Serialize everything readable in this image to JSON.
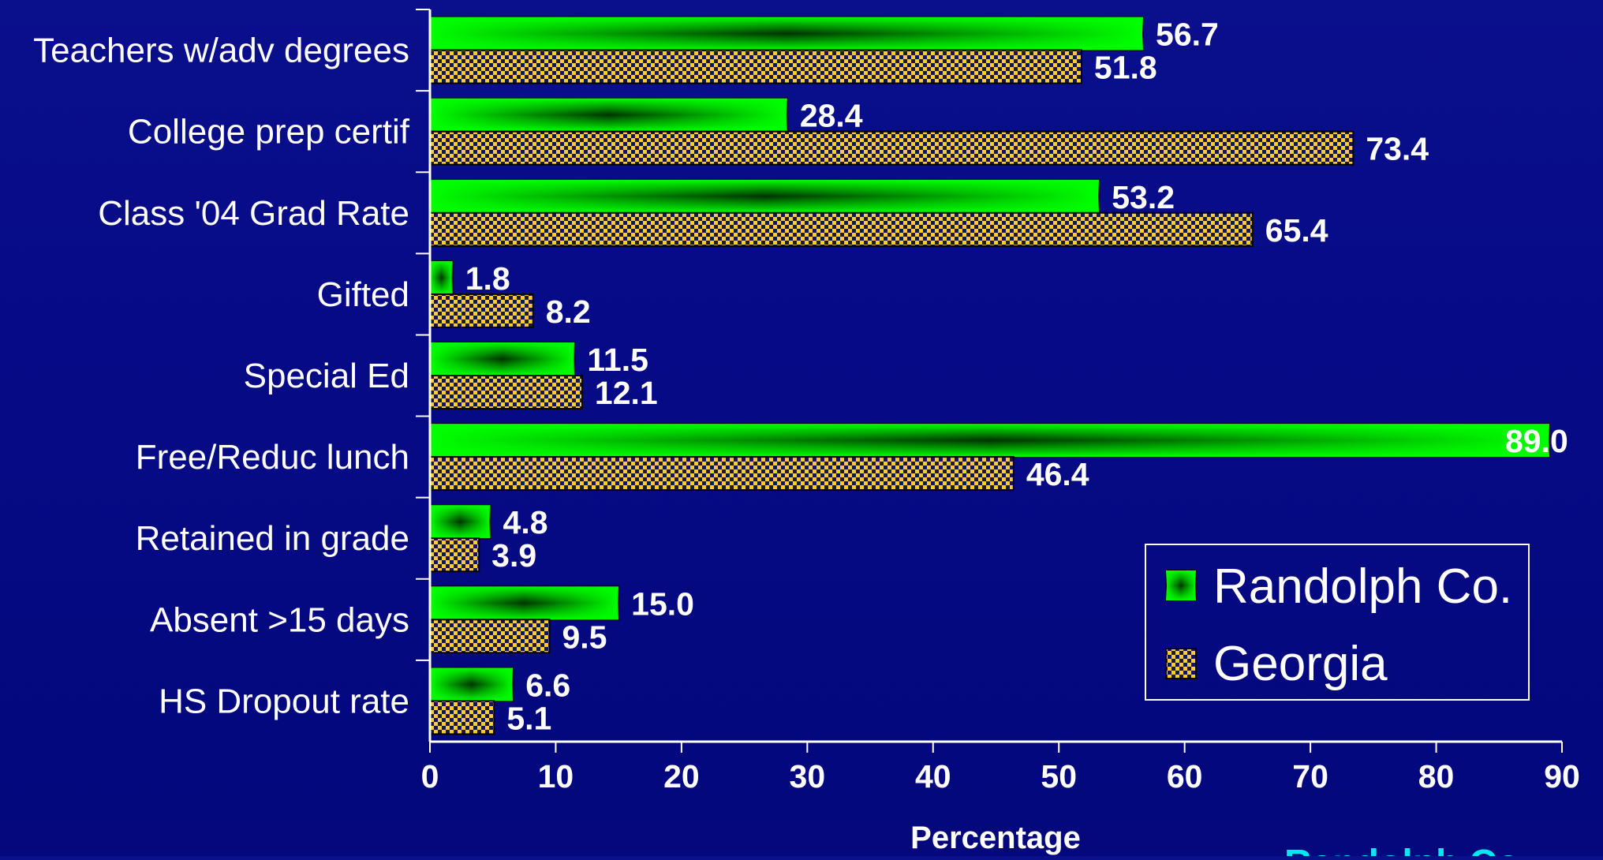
{
  "chart_data": {
    "type": "bar",
    "orientation": "horizontal",
    "categories": [
      "Teachers w/adv degrees",
      "College prep certif",
      "Class '04 Grad Rate",
      "Gifted",
      "Special Ed",
      "Free/Reduc lunch",
      "Retained in grade",
      "Absent >15 days",
      "HS Dropout rate"
    ],
    "series": [
      {
        "name": "Randolph Co.",
        "color": "#00ff00",
        "values": [
          56.7,
          28.4,
          53.2,
          1.8,
          11.5,
          89.0,
          4.8,
          15.0,
          6.6
        ]
      },
      {
        "name": "Georgia",
        "color": "#ffcc33",
        "values": [
          51.8,
          73.4,
          65.4,
          8.2,
          12.1,
          46.4,
          3.9,
          9.5,
          5.1
        ]
      }
    ],
    "value_labels": [
      [
        "56.7",
        "28.4",
        "53.2",
        "1.8",
        "11.5",
        "89.0",
        "4.8",
        "15.0",
        "6.6"
      ],
      [
        "51.8",
        "73.4",
        "65.4",
        "8.2",
        "12.1",
        "46.4",
        "3.9",
        "9.5",
        "5.1"
      ]
    ],
    "xlabel": "Percentage",
    "xlim": [
      0,
      90
    ],
    "xticks": [
      "0",
      "10",
      "20",
      "30",
      "40",
      "50",
      "60",
      "70",
      "80",
      "90"
    ],
    "grid": false,
    "legend_position": "lower-right"
  },
  "footer_text": "Randolph Co"
}
